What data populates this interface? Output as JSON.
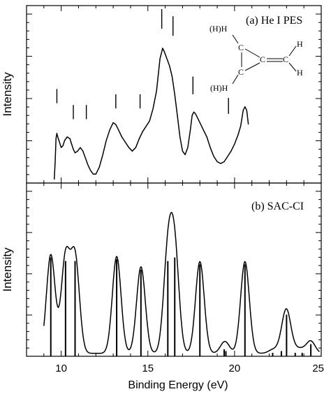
{
  "chart_data": [
    {
      "panel_label": "(a) He I PES",
      "type": "line",
      "ylabel": "Intensity",
      "xlim": [
        8,
        25
      ],
      "ylim": [
        0,
        1
      ],
      "series": [
        {
          "x": [
            9.6,
            9.65,
            9.7,
            9.75,
            9.8,
            9.9,
            10.0,
            10.1,
            10.2,
            10.35,
            10.5,
            10.6,
            10.7,
            10.8,
            10.95,
            11.1,
            11.25,
            11.4,
            11.55,
            11.7,
            11.85,
            12.0,
            12.2,
            12.4,
            12.6,
            12.8,
            13.0,
            13.15,
            13.3,
            13.5,
            13.7,
            13.9,
            14.1,
            14.3,
            14.5,
            14.7,
            14.9,
            15.1,
            15.3,
            15.5,
            15.7,
            15.85,
            15.95,
            16.1,
            16.25,
            16.4,
            16.55,
            16.7,
            16.85,
            17.0,
            17.15,
            17.3,
            17.45,
            17.55,
            17.65,
            17.75,
            17.9,
            18.05,
            18.2,
            18.4,
            18.6,
            18.8,
            19.0,
            19.2,
            19.4,
            19.6,
            19.8,
            20.0,
            20.2,
            20.35,
            20.5,
            20.6,
            20.7,
            20.8
          ],
          "y": [
            0.02,
            0.12,
            0.25,
            0.28,
            0.26,
            0.23,
            0.2,
            0.21,
            0.24,
            0.26,
            0.25,
            0.22,
            0.19,
            0.17,
            0.18,
            0.2,
            0.18,
            0.14,
            0.1,
            0.07,
            0.05,
            0.05,
            0.09,
            0.16,
            0.24,
            0.3,
            0.34,
            0.33,
            0.3,
            0.26,
            0.23,
            0.2,
            0.18,
            0.2,
            0.25,
            0.29,
            0.32,
            0.35,
            0.42,
            0.52,
            0.7,
            0.76,
            0.74,
            0.7,
            0.66,
            0.6,
            0.5,
            0.38,
            0.26,
            0.18,
            0.16,
            0.2,
            0.3,
            0.38,
            0.4,
            0.39,
            0.36,
            0.33,
            0.3,
            0.26,
            0.2,
            0.15,
            0.12,
            0.11,
            0.12,
            0.15,
            0.18,
            0.22,
            0.27,
            0.32,
            0.41,
            0.43,
            0.41,
            0.33
          ]
        }
      ],
      "markers": [
        {
          "x": 9.75,
          "y_top": 0.53,
          "y_bottom": 0.45
        },
        {
          "x": 10.7,
          "y_top": 0.44,
          "y_bottom": 0.36
        },
        {
          "x": 11.45,
          "y_top": 0.44,
          "y_bottom": 0.36
        },
        {
          "x": 13.15,
          "y_top": 0.5,
          "y_bottom": 0.42
        },
        {
          "x": 14.55,
          "y_top": 0.5,
          "y_bottom": 0.42
        },
        {
          "x": 15.8,
          "y_top": 0.98,
          "y_bottom": 0.87
        },
        {
          "x": 16.45,
          "y_top": 0.94,
          "y_bottom": 0.83
        },
        {
          "x": 17.6,
          "y_top": 0.6,
          "y_bottom": 0.5
        },
        {
          "x": 19.65,
          "y_top": 0.48,
          "y_bottom": 0.39
        }
      ],
      "molecule_labels": {
        "upper_left": "(H)H",
        "lower_left": "(H)H",
        "c_top": "C",
        "c_bottom": "C",
        "c_center": "C",
        "c_right": "C",
        "h_top": "H",
        "h_bottom": "H"
      }
    },
    {
      "panel_label": "(b) SAC-CI",
      "type": "line",
      "xlabel": "Binding Energy (eV)",
      "ylabel": "Intensity",
      "xlim": [
        8,
        25
      ],
      "ylim": [
        0,
        1
      ],
      "x_ticks": [
        10,
        15,
        20,
        25
      ],
      "sticks": [
        {
          "x": 9.4,
          "h": 0.57
        },
        {
          "x": 10.25,
          "h": 0.55
        },
        {
          "x": 10.8,
          "h": 0.55
        },
        {
          "x": 13.2,
          "h": 0.56
        },
        {
          "x": 14.6,
          "h": 0.5
        },
        {
          "x": 16.15,
          "h": 0.55
        },
        {
          "x": 16.55,
          "h": 0.57
        },
        {
          "x": 18.0,
          "h": 0.53
        },
        {
          "x": 19.4,
          "h": 0.04
        },
        {
          "x": 19.5,
          "h": 0.03
        },
        {
          "x": 20.6,
          "h": 0.53
        },
        {
          "x": 22.2,
          "h": 0.02
        },
        {
          "x": 22.7,
          "h": 0.03
        },
        {
          "x": 23.0,
          "h": 0.24
        },
        {
          "x": 23.5,
          "h": 0.02
        },
        {
          "x": 23.9,
          "h": 0.02
        },
        {
          "x": 24.4,
          "h": 0.07
        }
      ],
      "envelope": {
        "baseline": 0.017,
        "width": 0.25
      }
    }
  ]
}
